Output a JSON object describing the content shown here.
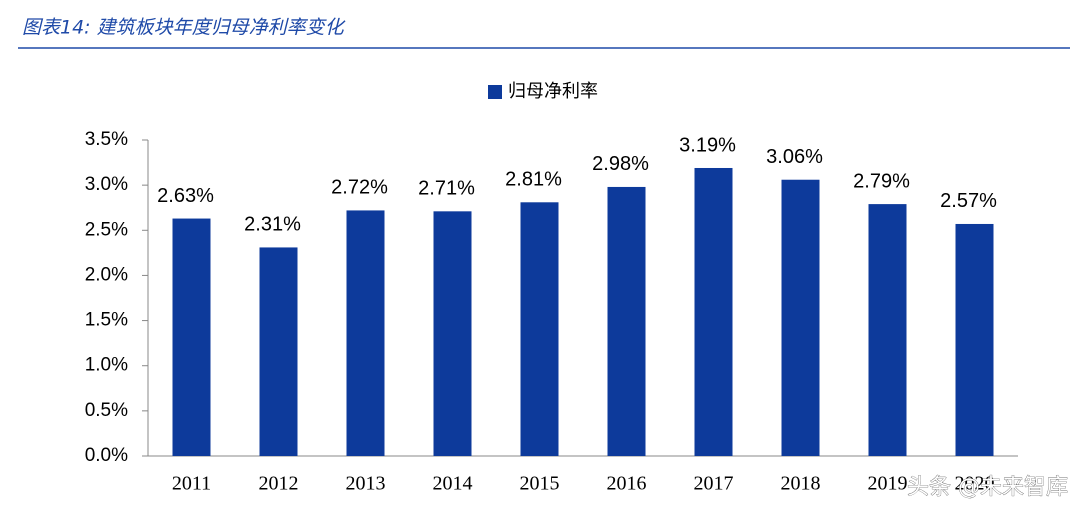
{
  "chart_data": {
    "type": "bar",
    "title": "图表14: 建筑板块年度归母净利率变化",
    "categories": [
      "2011",
      "2012",
      "2013",
      "2014",
      "2015",
      "2016",
      "2017",
      "2018",
      "2019",
      "2020"
    ],
    "series": [
      {
        "name": "归母净利率",
        "color": "#0d3a9b",
        "values": [
          2.63,
          2.31,
          2.72,
          2.71,
          2.81,
          2.98,
          3.19,
          3.06,
          2.79,
          2.57
        ],
        "value_labels": [
          "2.63%",
          "2.31%",
          "2.72%",
          "2.71%",
          "2.81%",
          "2.98%",
          "3.19%",
          "3.06%",
          "2.79%",
          "2.57%"
        ]
      }
    ],
    "ylim": [
      0,
      3.5
    ],
    "yticks": [
      {
        "value": 0,
        "label": "0.0%"
      },
      {
        "value": 0.5,
        "label": "0.5%"
      },
      {
        "value": 1,
        "label": "1.0%"
      },
      {
        "value": 1.5,
        "label": "1.5%"
      },
      {
        "value": 2,
        "label": "2.0%"
      },
      {
        "value": 2.5,
        "label": "2.5%"
      },
      {
        "value": 3,
        "label": "3.0%"
      },
      {
        "value": 3.5,
        "label": "3.5%"
      }
    ],
    "grid": false,
    "legend": "top",
    "watermark": "头条 @未来智库"
  }
}
